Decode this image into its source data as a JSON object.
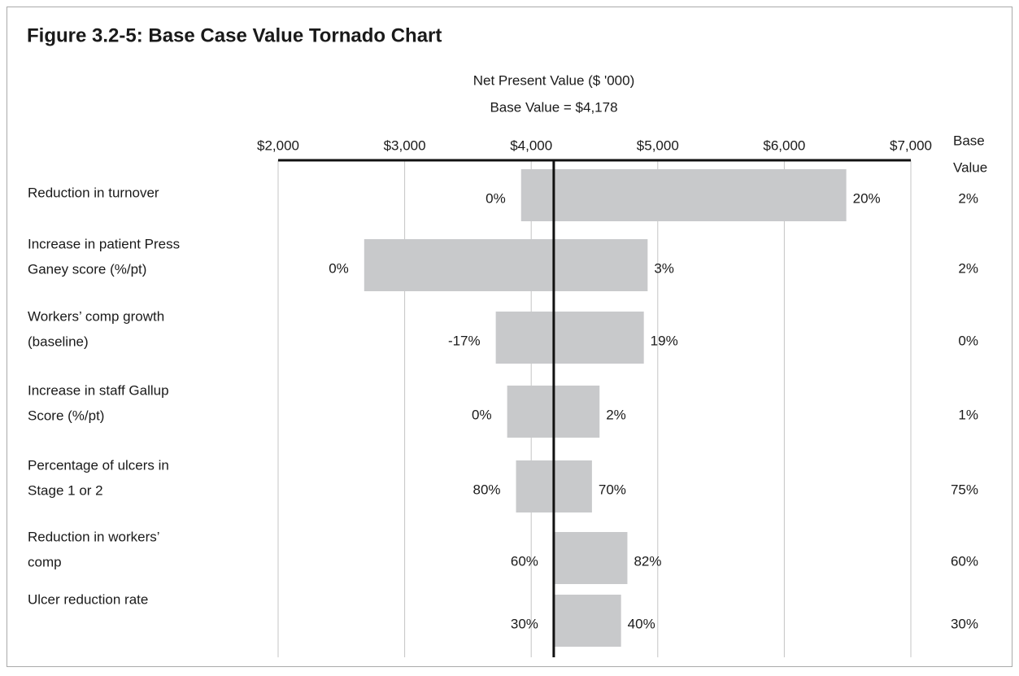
{
  "chart_data": {
    "type": "tornado",
    "title": "Figure 3.2-5: Base Case Value Tornado Chart",
    "x_label": "Net Present Value ($ '000)",
    "subtitle": "Base Value = $4,178",
    "base_value": 4178,
    "xlim": [
      2000,
      7000
    ],
    "xticks": [
      {
        "value": 2000,
        "label": "$2,000"
      },
      {
        "value": 3000,
        "label": "$3,000"
      },
      {
        "value": 4000,
        "label": "$4,000"
      },
      {
        "value": 5000,
        "label": "$5,000"
      },
      {
        "value": 6000,
        "label": "$6,000"
      },
      {
        "value": 7000,
        "label": "$7,000"
      }
    ],
    "grid": true,
    "color": "#c8c9cb",
    "base_value_header": [
      "Base",
      "Value"
    ],
    "categories": [
      [
        "Reduction in turnover"
      ],
      [
        "Increase in patient Press",
        "Ganey score (%/pt)"
      ],
      [
        "Workers’ comp growth",
        "(baseline)"
      ],
      [
        "Increase in staff Gallup",
        "Score (%/pt)"
      ],
      [
        "Percentage of ulcers in",
        "Stage 1 or 2"
      ],
      [
        "Reduction in workers’",
        "comp"
      ],
      [
        "Ulcer reduction rate"
      ]
    ],
    "low": [
      3920,
      2680,
      3720,
      3810,
      3880,
      4178,
      4178
    ],
    "high": [
      6490,
      4920,
      4890,
      4540,
      4480,
      4760,
      4710
    ],
    "low_input_labels": [
      "0%",
      "0%",
      "-17%",
      "0%",
      "80%",
      "60%",
      "30%"
    ],
    "high_input_labels": [
      "20%",
      "3%",
      "19%",
      "2%",
      "70%",
      "82%",
      "40%"
    ],
    "base_inputs": [
      "2%",
      "2%",
      "0%",
      "1%",
      "75%",
      "60%",
      "30%"
    ]
  }
}
